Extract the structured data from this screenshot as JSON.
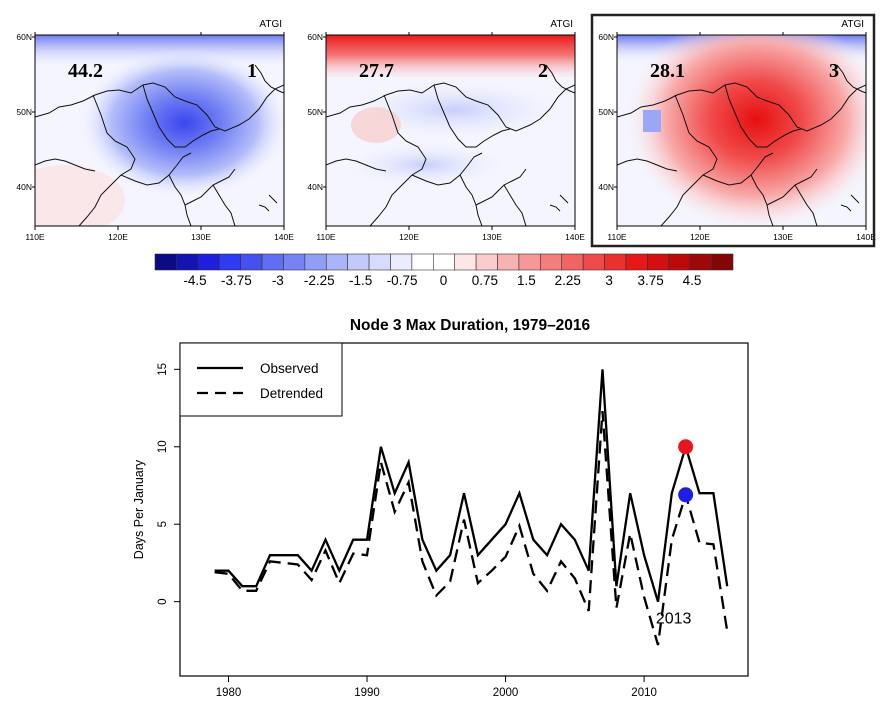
{
  "panels": [
    {
      "id": "1",
      "value_label": "44.2",
      "node_label": "1",
      "corner_label": "ATGI",
      "highlighted": false,
      "sign": -1,
      "peak": 2.6
    },
    {
      "id": "2",
      "value_label": "27.7",
      "node_label": "2",
      "corner_label": "ATGI",
      "highlighted": false,
      "sign": -1,
      "peak": 0.9
    },
    {
      "id": "3",
      "value_label": "28.1",
      "node_label": "3",
      "corner_label": "ATGI",
      "highlighted": true,
      "sign": 1,
      "peak": 3.7
    }
  ],
  "map_axes": {
    "lon_ticks": [
      "110E",
      "120E",
      "130E",
      "140E"
    ],
    "lat_ticks": [
      "60N",
      "50N",
      "40N"
    ]
  },
  "colorbar": {
    "tick_labels": [
      "-4.5",
      "-3.75",
      "-3",
      "-2.25",
      "-1.5",
      "-0.75",
      "0",
      "0.75",
      "1.5",
      "2.25",
      "3",
      "3.75",
      "4.5"
    ],
    "colors": [
      "#0a0a82",
      "#1414b4",
      "#1e1edc",
      "#2d3cf0",
      "#4650f0",
      "#5f6ef2",
      "#7882f4",
      "#919ef6",
      "#aab4f8",
      "#c3cafa",
      "#d7dcfc",
      "#eaedfe",
      "#ffffff",
      "#ffffff",
      "#fde6e6",
      "#fbcccc",
      "#f8b2b2",
      "#f69898",
      "#f37e7e",
      "#f06464",
      "#ee4a4a",
      "#eb3030",
      "#e81818",
      "#d40f0f",
      "#bc0a0a",
      "#a00808",
      "#820606"
    ]
  },
  "line_chart": {
    "title": "Node 3 Max Duration, 1979–2016",
    "annotation": "2013",
    "marker_colors": {
      "observed": "#e8141e",
      "detrended": "#1e1ee6"
    }
  },
  "chart_data": {
    "type": "line",
    "title": "Node 3 Max Duration, 1979–2016",
    "xlabel": "",
    "ylabel": "Days Per January",
    "xlim": [
      1976.5,
      2017.5
    ],
    "ylim": [
      -4.8,
      16.7
    ],
    "x_ticks": [
      1980,
      1990,
      2000,
      2010
    ],
    "y_ticks": [
      0,
      5,
      10,
      15
    ],
    "legend_position": "top-left",
    "x": [
      1979,
      1980,
      1981,
      1982,
      1983,
      1984,
      1985,
      1986,
      1987,
      1988,
      1989,
      1990,
      1991,
      1992,
      1993,
      1994,
      1995,
      1996,
      1997,
      1998,
      1999,
      2000,
      2001,
      2002,
      2003,
      2004,
      2005,
      2006,
      2007,
      2008,
      2009,
      2010,
      2011,
      2012,
      2013,
      2014,
      2015,
      2016
    ],
    "series": [
      {
        "name": "Observed",
        "style": "solid",
        "values": [
          2,
          2,
          1,
          1,
          3,
          3,
          3,
          2,
          4,
          2,
          4,
          4,
          10,
          7,
          9,
          4,
          2,
          3,
          7,
          3,
          4,
          5,
          7,
          4,
          3,
          5,
          4,
          2,
          15,
          1,
          7,
          3,
          0,
          7,
          10,
          7,
          7,
          1
        ]
      },
      {
        "name": "Detrended",
        "style": "dashed",
        "values": [
          1.9,
          1.8,
          0.7,
          0.7,
          2.6,
          2.5,
          2.4,
          1.4,
          3.3,
          1.2,
          3.1,
          3.0,
          9.0,
          5.8,
          7.7,
          2.6,
          0.4,
          1.3,
          5.3,
          1.2,
          2.0,
          2.9,
          4.9,
          1.8,
          0.7,
          2.6,
          1.5,
          -0.6,
          12.3,
          -0.4,
          4.4,
          0.3,
          -2.8,
          4.0,
          6.9,
          3.8,
          3.7,
          -1.9
        ]
      }
    ],
    "highlight_points": [
      {
        "x": 2013,
        "y": 10,
        "series": "Observed",
        "color": "#e8141e"
      },
      {
        "x": 2013,
        "y": 6.9,
        "series": "Detrended",
        "color": "#1e1ee6"
      }
    ],
    "annotation": {
      "text": "2013",
      "x": 2013
    }
  }
}
